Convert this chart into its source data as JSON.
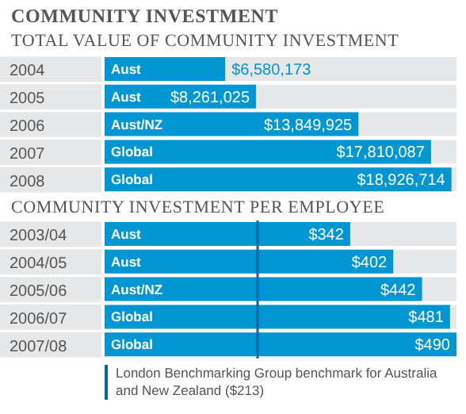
{
  "chart_data": [
    {
      "type": "bar",
      "orientation": "horizontal",
      "title": "COMMUNITY INVESTMENT",
      "subtitle": "TOTAL VALUE OF COMMUNITY INVESTMENT",
      "categories": [
        "2004",
        "2005",
        "2006",
        "2007",
        "2008"
      ],
      "values": [
        6580173,
        8261025,
        13849925,
        17810087,
        18926714
      ],
      "color": "#0096d3",
      "value_labels": [
        "$6,580,173",
        "$8,261,025",
        "$13,849,925",
        "$17,810,087",
        "$18,926,714"
      ],
      "xlim": [
        0,
        19200000
      ],
      "tick_labels": "y",
      "annotations": [
        "Aust",
        "Aust",
        "Aust/NZ",
        "Global",
        "Global"
      ]
    },
    {
      "type": "bar",
      "orientation": "horizontal",
      "title": "COMMUNITY INVESTMENT PER EMPLOYEE",
      "categories": [
        "2003/04",
        "2004/05",
        "2005/06",
        "2006/07",
        "2007/08"
      ],
      "values": [
        342,
        402,
        442,
        481,
        490
      ],
      "color": "#0096d3",
      "value_labels": [
        "$342",
        "$402",
        "$442",
        "$481",
        "$490"
      ],
      "xlim": [
        0,
        490
      ],
      "tick_labels": "y",
      "annotations": [
        "Aust",
        "Aust",
        "Aust/NZ",
        "Global",
        "Global"
      ],
      "ref_lines": [
        {
          "axis": "x",
          "value": 213,
          "label": "London Benchmarking Group benchmark for Australia and New Zealand ($213)",
          "color": "#0a6499"
        }
      ]
    }
  ]
}
